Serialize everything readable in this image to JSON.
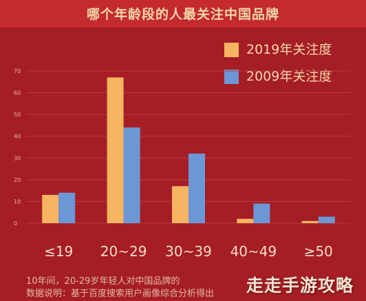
{
  "chart_data": {
    "type": "bar",
    "title": "哪个年龄段的人最关注中国品牌",
    "categories": [
      "≤19",
      "20~29",
      "30~39",
      "40~49",
      "≥50"
    ],
    "series": [
      {
        "name": "2019年关注度",
        "values": [
          13,
          67,
          17,
          2,
          1
        ],
        "color": "#f8b561"
      },
      {
        "name": "2009年关注度",
        "values": [
          14,
          44,
          32,
          9,
          3
        ],
        "color": "#6b97d6"
      }
    ],
    "yticks": [
      0,
      10,
      20,
      30,
      40,
      50,
      60,
      70
    ],
    "ylim": [
      0,
      70
    ],
    "grid": true,
    "legend_position": "top-right"
  },
  "colors": {
    "background": "#a51d25",
    "title_bar": "#c42a2f",
    "axis_text": "#e8b9a8",
    "grid": "#b84045"
  },
  "footnotes": [
    "10年间，20-29岁年轻人对中国品牌的",
    "数据说明：基于百度搜索用户画像综合分析得出"
  ],
  "watermark": "走走手游攻略"
}
